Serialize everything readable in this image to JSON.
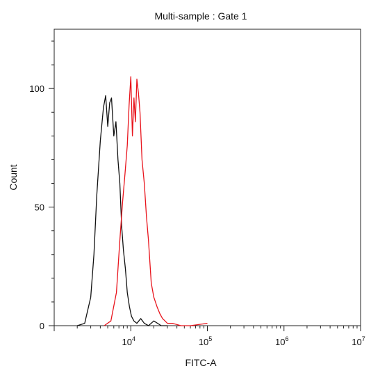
{
  "chart_data": {
    "type": "line",
    "title": "Multi-sample : Gate 1",
    "xlabel": "FITC-A",
    "ylabel": "Count",
    "x_scale": "log",
    "xlim": [
      1000,
      10000000
    ],
    "ylim": [
      0,
      125
    ],
    "x_ticks": [
      {
        "base": "10",
        "exp": "4",
        "value": 10000
      },
      {
        "base": "10",
        "exp": "5",
        "value": 100000
      },
      {
        "base": "10",
        "exp": "6",
        "value": 1000000
      },
      {
        "base": "10",
        "exp": "7",
        "value": 10000000
      }
    ],
    "y_ticks": [
      0,
      50,
      100
    ],
    "y_tick_labels": [
      "0",
      "50",
      "100"
    ],
    "grid": false,
    "series": [
      {
        "color": "#111111",
        "x": [
          2000,
          2500,
          3000,
          3300,
          3600,
          4000,
          4400,
          4700,
          5000,
          5300,
          5600,
          6000,
          6400,
          6800,
          7200,
          7600,
          8000,
          8500,
          9000,
          9600,
          10200,
          11000,
          12000,
          13500,
          15000,
          17000,
          20000,
          25000,
          30000
        ],
        "y": [
          0,
          1,
          12,
          30,
          55,
          78,
          92,
          97,
          84,
          94,
          96,
          80,
          86,
          70,
          60,
          42,
          32,
          24,
          14,
          8,
          4,
          2,
          1,
          3,
          1,
          0,
          2,
          0,
          0
        ]
      },
      {
        "color": "#e8141c",
        "x": [
          4500,
          5500,
          6500,
          7200,
          7800,
          8400,
          9000,
          9500,
          10000,
          10500,
          11000,
          11500,
          12000,
          12600,
          13200,
          14000,
          15000,
          16000,
          17000,
          18500,
          20000,
          22000,
          24000,
          26000,
          28000,
          30000,
          35000,
          45000,
          60000,
          100000
        ],
        "y": [
          0,
          2,
          14,
          36,
          52,
          64,
          76,
          93,
          105,
          80,
          96,
          86,
          104,
          98,
          90,
          70,
          60,
          46,
          36,
          18,
          12,
          8,
          5,
          3,
          2,
          1,
          1,
          0,
          0,
          1
        ]
      }
    ]
  }
}
